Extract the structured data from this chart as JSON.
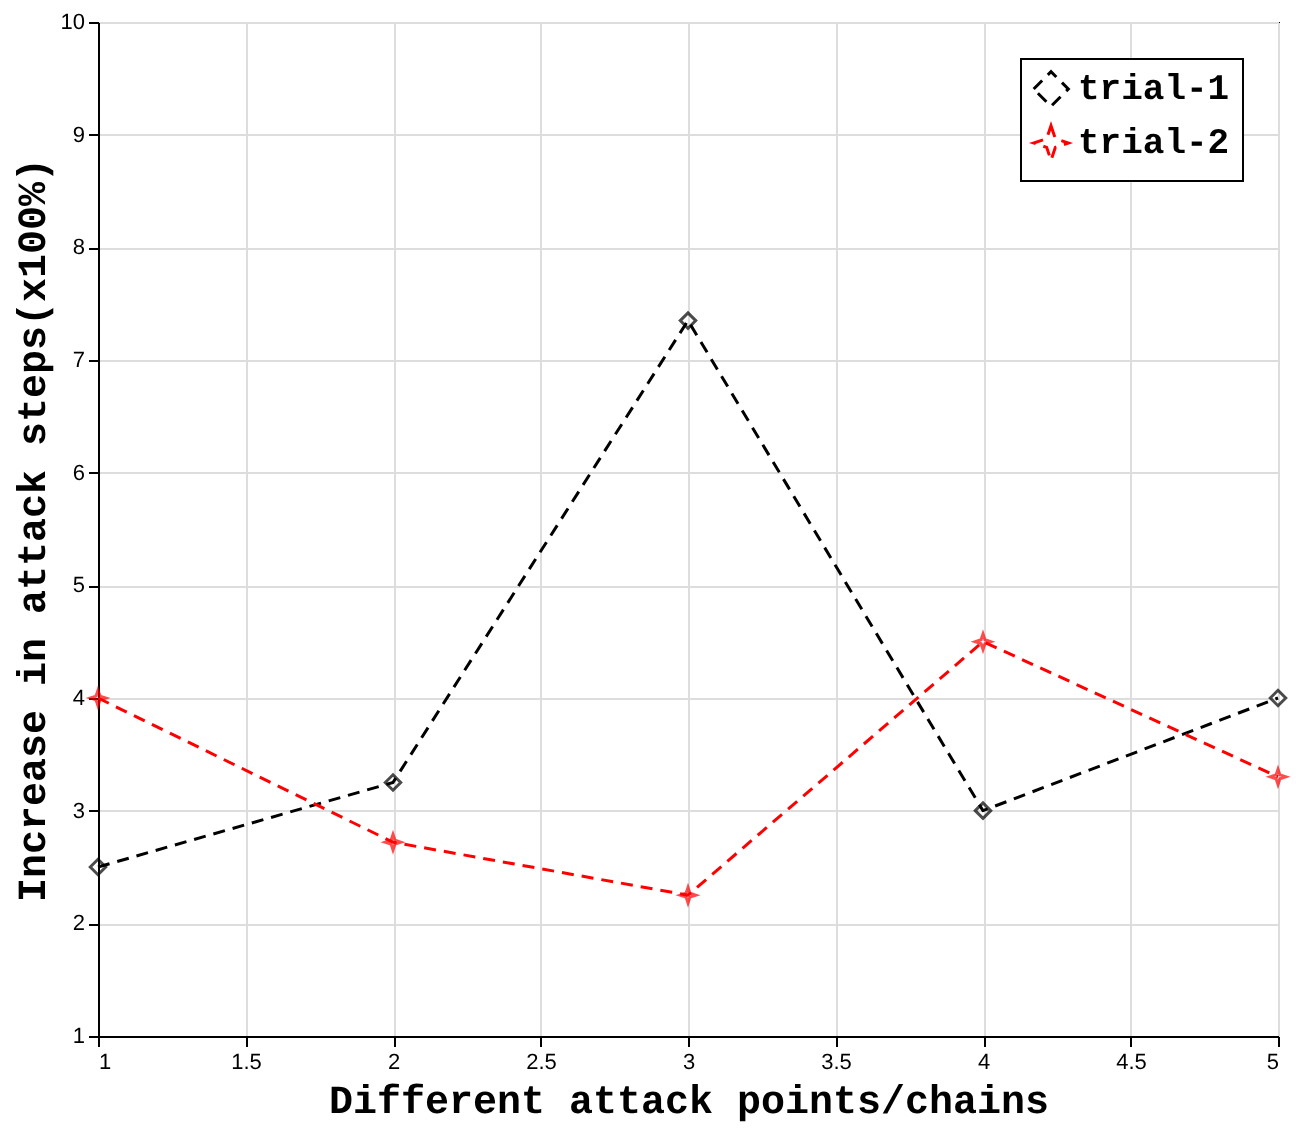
{
  "chart_data": {
    "type": "line",
    "xlabel": "Different attack points/chains",
    "ylabel": "Increase in attack steps(x100%)",
    "x": [
      1,
      2,
      3,
      4,
      5
    ],
    "series": [
      {
        "name": "trial-1",
        "color": "#000000",
        "values": [
          2.5,
          3.25,
          7.35,
          3.0,
          4.0
        ],
        "marker": "diamond"
      },
      {
        "name": "trial-2",
        "color": "#ff0000",
        "values": [
          4.0,
          2.72,
          2.25,
          4.5,
          3.3
        ],
        "marker": "star"
      }
    ],
    "xlim": [
      1,
      5
    ],
    "xticks": [
      1,
      1.5,
      2,
      2.5,
      3,
      3.5,
      4,
      4.5,
      5
    ],
    "ylim": [
      1,
      10
    ],
    "yticks": [
      1,
      2,
      3,
      4,
      5,
      6,
      7,
      8,
      9,
      10
    ],
    "grid": true,
    "legend": "top right",
    "line_style": "dashed"
  }
}
